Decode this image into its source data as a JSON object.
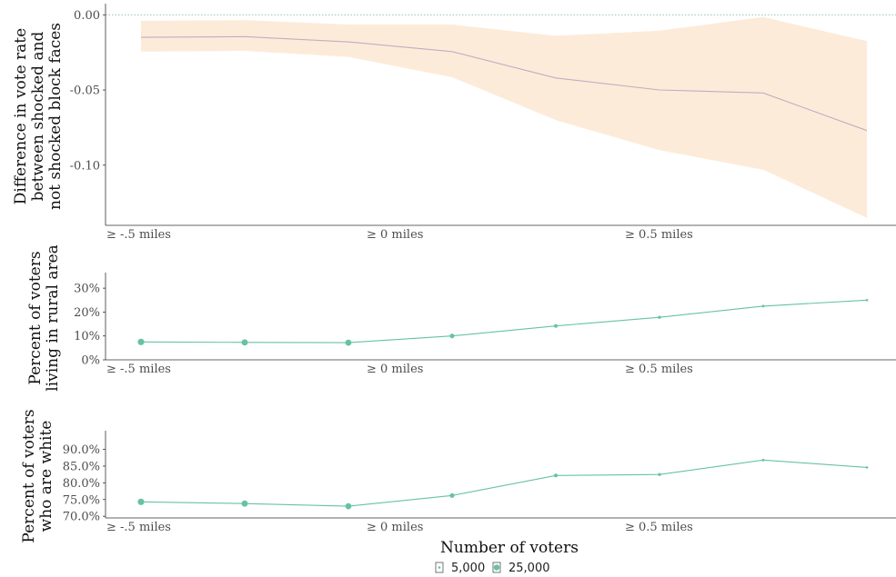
{
  "chart_data": [
    {
      "type": "area",
      "ylabel": [
        "Difference in vote rate",
        "between shocked and",
        "not shocked block faces"
      ],
      "ylim": [
        -0.14,
        0.005
      ],
      "yticks": [
        "0.00",
        "-0.05",
        "-0.10"
      ],
      "ytick_values": [
        0.0,
        -0.05,
        -0.1
      ],
      "xticks": [
        "≥ -.5 miles",
        "≥ 0 miles",
        "≥ 0.5 miles"
      ],
      "x": [
        1,
        2,
        3,
        4,
        5,
        6,
        7,
        8
      ],
      "estimate": [
        -0.015,
        -0.0145,
        -0.018,
        -0.0245,
        -0.042,
        -0.05,
        -0.052,
        -0.077
      ],
      "ci_low": [
        -0.0245,
        -0.024,
        -0.028,
        -0.0415,
        -0.07,
        -0.09,
        -0.103,
        -0.135
      ],
      "ci_high": [
        -0.004,
        -0.0035,
        -0.0065,
        -0.0065,
        -0.014,
        -0.0105,
        -0.0015,
        -0.0175
      ],
      "reference_line": 0.0,
      "colors": {
        "band": "#fdebd9",
        "line": "#c0adc3",
        "ref": "#7fbfb0"
      }
    },
    {
      "type": "line",
      "ylabel": [
        "Percent of voters",
        "living in rural area"
      ],
      "ylim": [
        0,
        35
      ],
      "yticks": [
        "0%",
        "10%",
        "20%",
        "30%"
      ],
      "ytick_values": [
        0,
        10,
        20,
        30
      ],
      "xticks": [
        "≥ -.5 miles",
        "≥ 0 miles",
        "≥ 0.5 miles"
      ],
      "x": [
        1,
        2,
        3,
        4,
        5,
        6,
        7,
        8
      ],
      "values": [
        7.5,
        7.3,
        7.2,
        10.0,
        14.2,
        17.8,
        22.5,
        25.0
      ],
      "voters": [
        25000,
        24000,
        23000,
        16000,
        11000,
        8000,
        6000,
        5000
      ],
      "color": "#66c2a5"
    },
    {
      "type": "line",
      "ylabel": [
        "Percent of voters",
        "who are white"
      ],
      "ylim": [
        69.5,
        94.5
      ],
      "yticks": [
        "70.0%",
        "75.0%",
        "80.0%",
        "85.0%",
        "90.0%"
      ],
      "ytick_values": [
        70,
        75,
        80,
        85,
        90
      ],
      "xticks": [
        "≥ -.5 miles",
        "≥ 0 miles",
        "≥ 0.5 miles"
      ],
      "x": [
        1,
        2,
        3,
        4,
        5,
        6,
        7,
        8
      ],
      "values": [
        74.3,
        73.8,
        73.0,
        76.2,
        82.2,
        82.5,
        86.8,
        84.6
      ],
      "voters": [
        25000,
        24000,
        23000,
        16000,
        11000,
        8000,
        6000,
        5000
      ],
      "color": "#66c2a5"
    }
  ],
  "xlabel": "Number of voters",
  "legend": {
    "items": [
      "5,000",
      "25,000"
    ],
    "placement": "bottom"
  }
}
